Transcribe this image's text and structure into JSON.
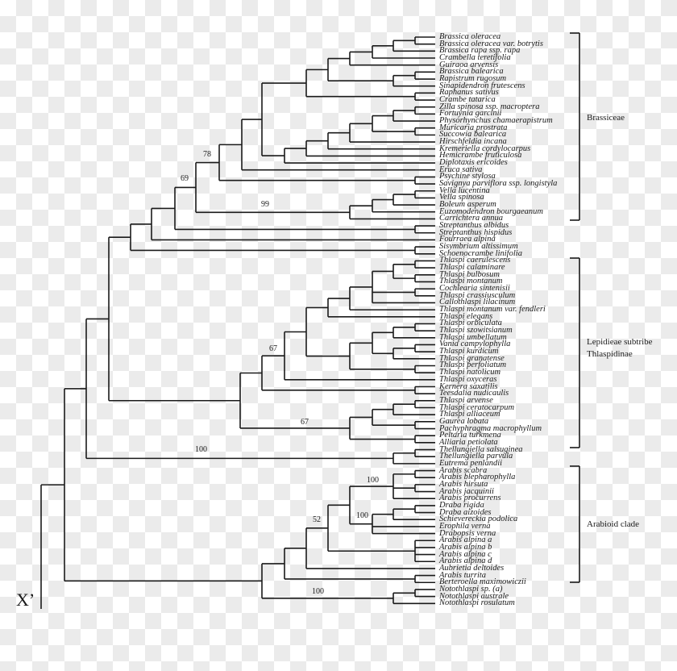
{
  "taxa": [
    "Brassica oleracea",
    "Brassica oleracea var. botrytis",
    "Brassica rapa ssp. rapa",
    "Crambella teretifolia",
    "Guiraoa arvensis",
    "Brassica balearica",
    "Rapistrum rugosum",
    "Sinapidendron frutescens",
    "Raphanus sativus",
    "Crambe tatarica",
    "Zilla spinosa ssp. macroptera",
    "Fortuynia garcinii",
    "Physorhynchus chamaerapistrum",
    "Muricaria prostrata",
    "Succowia balearica",
    "Hirschfeldia incana",
    "Kremeriella cordylocarpus",
    "Hemicrambe fruticulosa",
    "Diplotaxis ericoides",
    "Eruca sativa",
    "Psychine stylosa",
    "Savignya parviflora ssp. longistyla",
    "Vella lucentina",
    "Vella spinosa",
    "Boleum asperum",
    "Euzomodendron bourgaeanum",
    "Carrichtera annua",
    "Streptanthus albidus",
    "Streptanthus hispidus",
    "Fourraea alpina",
    "Sisymbrium altissimum",
    "Schoenocrambe linifolia",
    "Thlaspi caerulescens",
    "Thlaspi calaminare",
    "Thlaspi bulbosum",
    "Thlaspi montanum",
    "Cochlearia sintenisii",
    "Thlaspi crassiusculum",
    "Callothlaspi lilacinum",
    "Thlaspi montanum var. fendleri",
    "Thlaspi elegans",
    "Thlaspi orbiculata",
    "Thlaspi szowitsianum",
    "Thlaspi umbellatum",
    "Vania campylophylla",
    "Thlaspi kurdicum",
    "Thlaspi granatense",
    "Thlaspi perfoliatum",
    "Thlaspi natolicum",
    "Thlaspi oxyceras",
    "Kernera saxatilis",
    "Teesdalia nudicaulis",
    "Thlaspi arvense",
    "Thlaspi ceratocarpum",
    "Thlaspi alliaceum",
    "Gaurea lobata",
    "Pachyphragma macrophyllum",
    "Peltaria turkmena",
    "Alliaria petiolata",
    "Thellungiella salsuginea",
    "Thellungiella parvula",
    "Eutrema penlandii",
    "Arabis scabra",
    "Arabis blepharophylla",
    "Arabis hirsuta",
    "Arabis jacquinii",
    "Arabis procurrens",
    "Draba rigida",
    "Draba aizoides",
    "Schievereckia podolica",
    "Erophila verna",
    "Drabopsis verna",
    "Arabis alpina a",
    "Arabis alpina b",
    "Arabis alpina c",
    "Arabis alpina d",
    "Aubrietia deltoides",
    "Arabis turrita",
    "Berteroella maximowiczii",
    "Notothlaspi sp. (a)",
    "Notothlaspi australe",
    "Notothlaspi rosulatum"
  ],
  "support_values": [
    "78",
    "69",
    "99",
    "67",
    "67",
    "100",
    "100",
    "100",
    "52",
    "100"
  ],
  "clades": {
    "brassiceae": "Brassiceae",
    "lepidieae_line1": "Lepidieae subtribe",
    "lepidieae_line2": "Thlaspidinae",
    "arabioid": "Arabioid clade"
  },
  "root_label": "X’"
}
